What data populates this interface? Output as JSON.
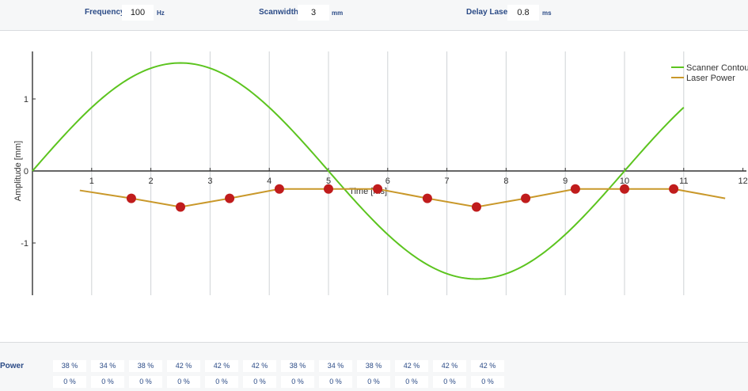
{
  "params": {
    "frequency": {
      "label": "Frequency",
      "value": "100",
      "unit": "Hz"
    },
    "scanwidth": {
      "label": "Scanwidth",
      "value": "3",
      "unit": "mm"
    },
    "delay": {
      "label": "Delay Laser",
      "value": "0.8",
      "unit": "ms"
    }
  },
  "chart_data": {
    "type": "line",
    "xlabel": "Time [ms]",
    "ylabel": "Amplitude [mm]",
    "xlim": [
      0,
      12
    ],
    "ylim": [
      -1.7,
      1.7
    ],
    "x_ticks": [
      "1",
      "2",
      "3",
      "4",
      "5",
      "6",
      "7",
      "8",
      "9",
      "10",
      "11",
      "12"
    ],
    "y_ticks": [
      "1",
      "0",
      "-1"
    ],
    "legend_position": "top-right",
    "series": [
      {
        "name": "Scanner Contour",
        "color": "#5cc41f",
        "function": "1.5*sin(2*pi*x/10)",
        "x_range": [
          0,
          11
        ]
      },
      {
        "name": "Laser Power",
        "color": "#c9982a",
        "x": [
          0.8,
          1.67,
          2.5,
          3.33,
          4.17,
          5.0,
          5.83,
          6.67,
          7.5,
          8.33,
          9.17,
          10.0,
          10.83,
          11.7
        ],
        "y": [
          -0.27,
          -0.38,
          -0.5,
          -0.38,
          -0.25,
          -0.25,
          -0.25,
          -0.38,
          -0.5,
          -0.38,
          -0.25,
          -0.25,
          -0.25,
          -0.38
        ],
        "markers_x": [
          1.67,
          2.5,
          3.33,
          4.17,
          5.0,
          5.83,
          6.67,
          7.5,
          8.33,
          9.17,
          10.0,
          10.83
        ],
        "marker_color": "#c01c1c"
      }
    ]
  },
  "table": {
    "power_label": "Power",
    "power": [
      "38 %",
      "34 %",
      "38 %",
      "42 %",
      "42 %",
      "42 %",
      "38 %",
      "34 %",
      "38 %",
      "42 %",
      "42 %",
      "42 %"
    ],
    "delay": [
      "0 %",
      "0 %",
      "0 %",
      "0 %",
      "0 %",
      "0 %",
      "0 %",
      "0 %",
      "0 %",
      "0 %",
      "0 %",
      "0 %"
    ]
  }
}
